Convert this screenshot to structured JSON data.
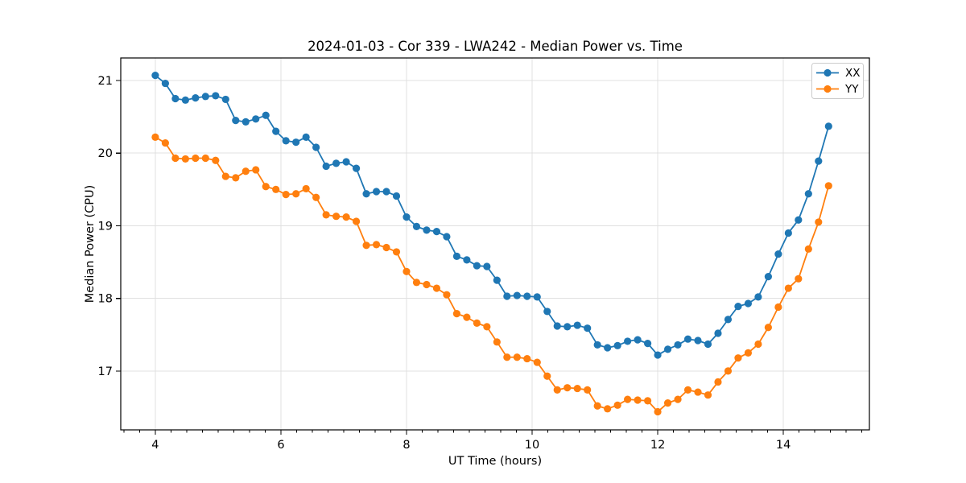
{
  "chart_data": {
    "type": "line",
    "title": "2024-01-03 - Cor 339 - LWA242 - Median Power vs. Time",
    "xlabel": "UT Time (hours)",
    "ylabel": "Median Power (CPU)",
    "xlim": [
      3.45,
      15.37
    ],
    "ylim": [
      16.19,
      21.31
    ],
    "xticks": [
      4,
      6,
      8,
      10,
      12,
      14
    ],
    "yticks": [
      17,
      18,
      19,
      20,
      21
    ],
    "minor_xtick_step": 0.25,
    "grid": true,
    "legend_position": "upper right",
    "marker": "circle",
    "x": [
      4.0,
      4.16,
      4.32,
      4.48,
      4.64,
      4.8,
      4.96,
      5.12,
      5.28,
      5.44,
      5.6,
      5.76,
      5.92,
      6.08,
      6.24,
      6.4,
      6.56,
      6.72,
      6.88,
      7.04,
      7.2,
      7.36,
      7.52,
      7.68,
      7.84,
      8.0,
      8.16,
      8.32,
      8.48,
      8.64,
      8.8,
      8.96,
      9.12,
      9.28,
      9.44,
      9.6,
      9.76,
      9.92,
      10.08,
      10.24,
      10.4,
      10.56,
      10.72,
      10.88,
      11.04,
      11.2,
      11.36,
      11.52,
      11.68,
      11.84,
      12.0,
      12.16,
      12.32,
      12.48,
      12.64,
      12.8,
      12.96,
      13.12,
      13.28,
      13.44,
      13.6,
      13.76,
      13.92,
      14.08,
      14.24,
      14.4,
      14.56,
      14.72
    ],
    "series": [
      {
        "name": "XX",
        "color": "#1f77b4",
        "values": [
          21.07,
          20.96,
          20.75,
          20.73,
          20.76,
          20.78,
          20.79,
          20.74,
          20.45,
          20.43,
          20.47,
          20.52,
          20.3,
          20.17,
          20.15,
          20.22,
          20.08,
          19.82,
          19.86,
          19.88,
          19.79,
          19.44,
          19.47,
          19.47,
          19.41,
          19.12,
          18.99,
          18.94,
          18.92,
          18.85,
          18.58,
          18.53,
          18.45,
          18.44,
          18.25,
          18.03,
          18.04,
          18.03,
          18.02,
          17.82,
          17.62,
          17.61,
          17.63,
          17.59,
          17.36,
          17.32,
          17.35,
          17.41,
          17.43,
          17.38,
          17.22,
          17.3,
          17.36,
          17.44,
          17.42,
          17.37,
          17.52,
          17.71,
          17.89,
          17.93,
          18.02,
          18.3,
          18.61,
          18.9,
          19.08,
          19.44,
          19.89,
          20.37
        ]
      },
      {
        "name": "YY",
        "color": "#ff7f0e",
        "values": [
          20.22,
          20.14,
          19.93,
          19.92,
          19.93,
          19.93,
          19.9,
          19.68,
          19.66,
          19.75,
          19.77,
          19.54,
          19.5,
          19.43,
          19.44,
          19.51,
          19.39,
          19.15,
          19.13,
          19.12,
          19.06,
          18.73,
          18.74,
          18.7,
          18.64,
          18.37,
          18.22,
          18.19,
          18.14,
          18.05,
          17.79,
          17.74,
          17.66,
          17.61,
          17.4,
          17.19,
          17.19,
          17.17,
          17.12,
          16.93,
          16.74,
          16.77,
          16.76,
          16.74,
          16.52,
          16.48,
          16.53,
          16.61,
          16.6,
          16.59,
          16.44,
          16.56,
          16.61,
          16.74,
          16.71,
          16.67,
          16.85,
          17.0,
          17.18,
          17.25,
          17.37,
          17.6,
          17.88,
          18.14,
          18.27,
          18.68,
          19.05,
          19.55
        ]
      }
    ]
  }
}
